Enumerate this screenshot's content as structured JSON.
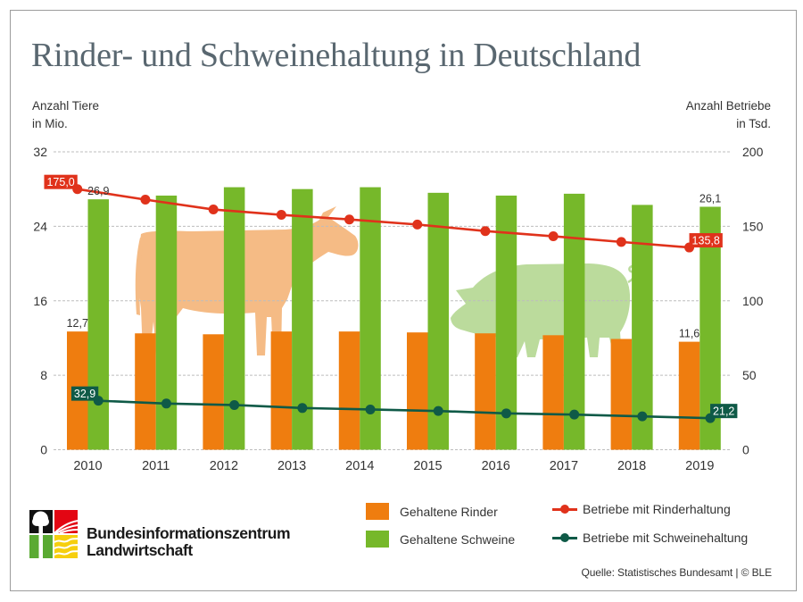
{
  "title": "Rinder- und Schweinehaltung in Deutschland",
  "chart_data": {
    "type": "bar",
    "title": "Rinder- und Schweinehaltung in Deutschland",
    "categories": [
      "2010",
      "2011",
      "2012",
      "2013",
      "2014",
      "2015",
      "2016",
      "2017",
      "2018",
      "2019"
    ],
    "left_axis": {
      "label_line1": "Anzahl Tiere",
      "label_line2": "in Mio.",
      "range": [
        0,
        32
      ],
      "ticks": [
        0,
        8,
        16,
        24,
        32
      ],
      "tick_labels": [
        "0",
        "8",
        "16",
        "24",
        "32"
      ]
    },
    "right_axis": {
      "label_line1": "Anzahl Betriebe",
      "label_line2": "in Tsd.",
      "range": [
        0,
        200
      ],
      "ticks": [
        0,
        50,
        100,
        150,
        200
      ],
      "tick_labels": [
        "0",
        "50",
        "100",
        "150",
        "200"
      ]
    },
    "grid": true,
    "legend_position": "bottom-right",
    "series": [
      {
        "name": "Gehaltene Rinder",
        "type": "bar",
        "axis": "left",
        "unit": "Mio.",
        "color": "#EF7D0F",
        "values": [
          12.7,
          12.5,
          12.4,
          12.7,
          12.7,
          12.6,
          12.5,
          12.3,
          11.9,
          11.6
        ]
      },
      {
        "name": "Gehaltene Schweine",
        "type": "bar",
        "axis": "left",
        "unit": "Mio.",
        "color": "#76B82A",
        "values": [
          26.9,
          27.3,
          28.2,
          28.0,
          28.2,
          27.6,
          27.3,
          27.5,
          26.3,
          26.1
        ]
      },
      {
        "name": "Betriebe mit Rinderhaltung",
        "type": "line",
        "axis": "right",
        "unit": "Tsd.",
        "color": "#E0321B",
        "values": [
          175.0,
          167.9,
          161.3,
          157.7,
          154.6,
          151.2,
          146.8,
          143.3,
          139.5,
          135.8
        ]
      },
      {
        "name": "Betriebe mit Schweinehaltung",
        "type": "line",
        "axis": "right",
        "unit": "Tsd.",
        "color": "#0F5A47",
        "values": [
          32.9,
          31.0,
          30.0,
          28.0,
          27.0,
          26.0,
          24.4,
          23.6,
          22.4,
          21.2
        ]
      }
    ],
    "data_labels": [
      {
        "series": "Gehaltene Rinder",
        "category": "2010",
        "text": "12,7"
      },
      {
        "series": "Gehaltene Rinder",
        "category": "2019",
        "text": "11,6"
      },
      {
        "series": "Gehaltene Schweine",
        "category": "2010",
        "text": "26,9"
      },
      {
        "series": "Gehaltene Schweine",
        "category": "2019",
        "text": "26,1"
      },
      {
        "series": "Betriebe mit Rinderhaltung",
        "category": "2010",
        "text": "175,0"
      },
      {
        "series": "Betriebe mit Rinderhaltung",
        "category": "2019",
        "text": "135,8"
      },
      {
        "series": "Betriebe mit Schweinehaltung",
        "category": "2010",
        "text": "32,9"
      },
      {
        "series": "Betriebe mit Schweinehaltung",
        "category": "2019",
        "text": "21,2"
      }
    ]
  },
  "legend": {
    "items": [
      {
        "label": "Gehaltene Rinder",
        "kind": "swatch",
        "color": "#EF7D0F"
      },
      {
        "label": "Gehaltene Schweine",
        "kind": "swatch",
        "color": "#76B82A"
      },
      {
        "label": "Betriebe mit Rinderhaltung",
        "kind": "line",
        "color": "#E0321B"
      },
      {
        "label": "Betriebe mit Schweinehaltung",
        "kind": "line",
        "color": "#0F5A47"
      }
    ]
  },
  "illustrations": [
    {
      "name": "cow",
      "color": "#F5BB85"
    },
    {
      "name": "pig",
      "color": "#BBDB9C"
    }
  ],
  "logo": {
    "line1": "Bundesinformationszentrum",
    "line2": "Landwirtschaft",
    "colors": {
      "black": "#111111",
      "red": "#E30613",
      "green": "#5AAA32",
      "yellow": "#F6CF0E"
    }
  },
  "source": "Quelle: Statistisches Bundesamt | © BLE"
}
